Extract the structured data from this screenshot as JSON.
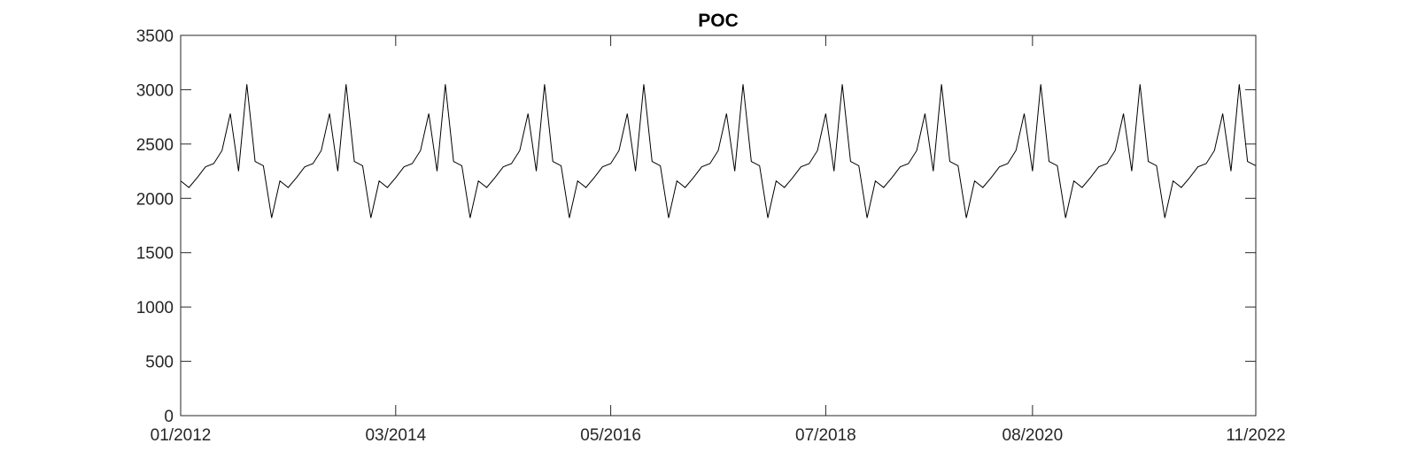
{
  "chart_data": {
    "type": "line",
    "title": "POC",
    "xlabel": "",
    "ylabel": "",
    "ylim": [
      0,
      3500
    ],
    "y_ticks": [
      0,
      500,
      1000,
      1500,
      2000,
      2500,
      3000,
      3500
    ],
    "xlim": [
      "2012-01",
      "2022-11"
    ],
    "x_tick_dates": [
      "2012-01",
      "2014-03",
      "2016-05",
      "2018-07",
      "2020-08",
      "2022-11"
    ],
    "x_tick_labels": [
      "01/2012",
      "03/2014",
      "05/2016",
      "07/2018",
      "08/2020",
      "11/2022"
    ],
    "grid": false,
    "series": [
      {
        "color": "#000000",
        "pattern_start": "2012-01",
        "pattern_monthly_values": [
          2160,
          2100,
          2190,
          2290,
          2320,
          2440,
          2780,
          2250,
          3050,
          2340,
          2300,
          1820
        ],
        "end": "2022-11"
      }
    ]
  }
}
